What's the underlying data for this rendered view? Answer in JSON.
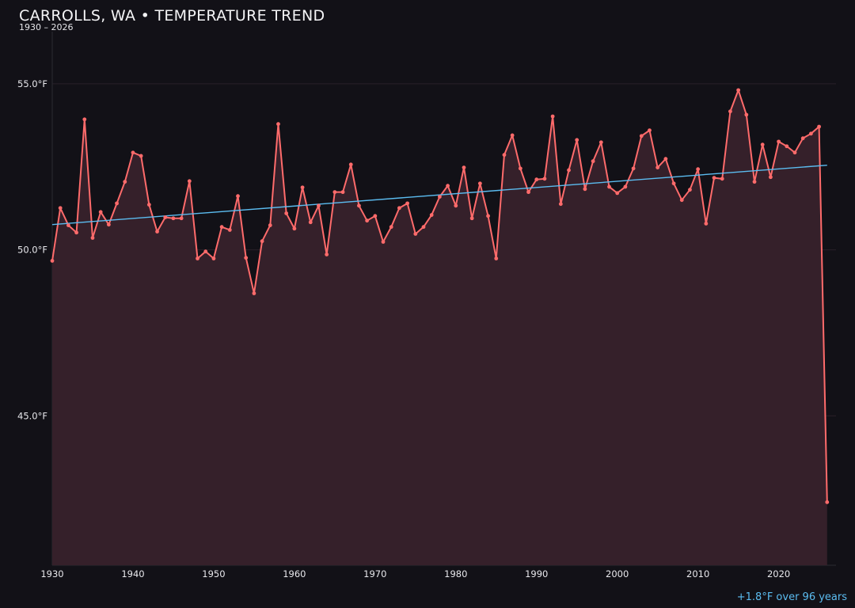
{
  "chart_data": {
    "type": "line",
    "title": "CARROLLS, WA • TEMPERATURE TREND",
    "subtitle": "1930 – 2026",
    "annotation": "+1.8°F over 96 years",
    "xlabel": "",
    "ylabel": "",
    "xlim": [
      1930,
      2027.1
    ],
    "ylim": [
      40.5,
      56.5
    ],
    "grid": true,
    "x_ticks": [
      1930,
      1940,
      1950,
      1960,
      1970,
      1980,
      1990,
      2000,
      2010,
      2020
    ],
    "y_ticks": [
      {
        "value": 45,
        "label": "45.0°F"
      },
      {
        "value": 50,
        "label": "50.0°F"
      },
      {
        "value": 55,
        "label": "55.0°F"
      }
    ],
    "colors": {
      "background": "#121117",
      "line": "#ff6b6b",
      "fill": "#35202a",
      "trend": "#5bbcf0",
      "grid": "#2a2128"
    },
    "series": [
      {
        "x": [
          1930,
          1931,
          1932,
          1933,
          1934,
          1935,
          1936,
          1937,
          1938,
          1939,
          1940,
          1941,
          1942,
          1943,
          1944,
          1945,
          1946,
          1947,
          1948,
          1949,
          1950,
          1951,
          1952,
          1953,
          1954,
          1955,
          1956,
          1957,
          1958,
          1959,
          1960,
          1961,
          1962,
          1963,
          1964,
          1965,
          1966,
          1967,
          1968,
          1969,
          1970,
          1971,
          1972,
          1973,
          1974,
          1975,
          1976,
          1977,
          1978,
          1979,
          1980,
          1981,
          1982,
          1983,
          1984,
          1985,
          1986,
          1987,
          1988,
          1989,
          1990,
          1991,
          1992,
          1993,
          1994,
          1995,
          1996,
          1997,
          1998,
          1999,
          2000,
          2001,
          2002,
          2003,
          2004,
          2005,
          2006,
          2007,
          2008,
          2009,
          2010,
          2011,
          2012,
          2013,
          2014,
          2015,
          2016,
          2017,
          2018,
          2019,
          2020,
          2021,
          2022,
          2023,
          2024,
          2025,
          2026
        ],
        "values": [
          49.67,
          51.26,
          50.74,
          50.52,
          53.93,
          50.36,
          51.14,
          50.76,
          51.4,
          52.05,
          52.93,
          52.83,
          51.36,
          50.55,
          50.98,
          50.95,
          50.95,
          52.07,
          49.74,
          49.95,
          49.74,
          50.69,
          50.6,
          51.62,
          49.76,
          48.69,
          50.26,
          50.74,
          53.79,
          51.1,
          50.64,
          51.88,
          50.83,
          51.33,
          49.86,
          51.74,
          51.74,
          52.57,
          51.33,
          50.88,
          51.02,
          50.24,
          50.69,
          51.26,
          51.4,
          50.48,
          50.69,
          51.05,
          51.6,
          51.93,
          51.33,
          52.48,
          50.95,
          52.0,
          51.02,
          49.74,
          52.86,
          53.45,
          52.45,
          51.74,
          52.12,
          52.14,
          54.02,
          51.38,
          52.4,
          53.31,
          51.83,
          52.67,
          53.24,
          51.9,
          51.71,
          51.9,
          52.45,
          53.43,
          53.6,
          52.48,
          52.74,
          52.0,
          51.5,
          51.81,
          52.43,
          50.79,
          52.17,
          52.14,
          54.17,
          54.81,
          54.07,
          52.05,
          53.17,
          52.19,
          53.26,
          53.12,
          52.93,
          53.36,
          53.5,
          53.71,
          42.4
        ]
      }
    ],
    "trend": {
      "x": [
        1930,
        2026
      ],
      "values": [
        50.76,
        52.55
      ]
    }
  }
}
